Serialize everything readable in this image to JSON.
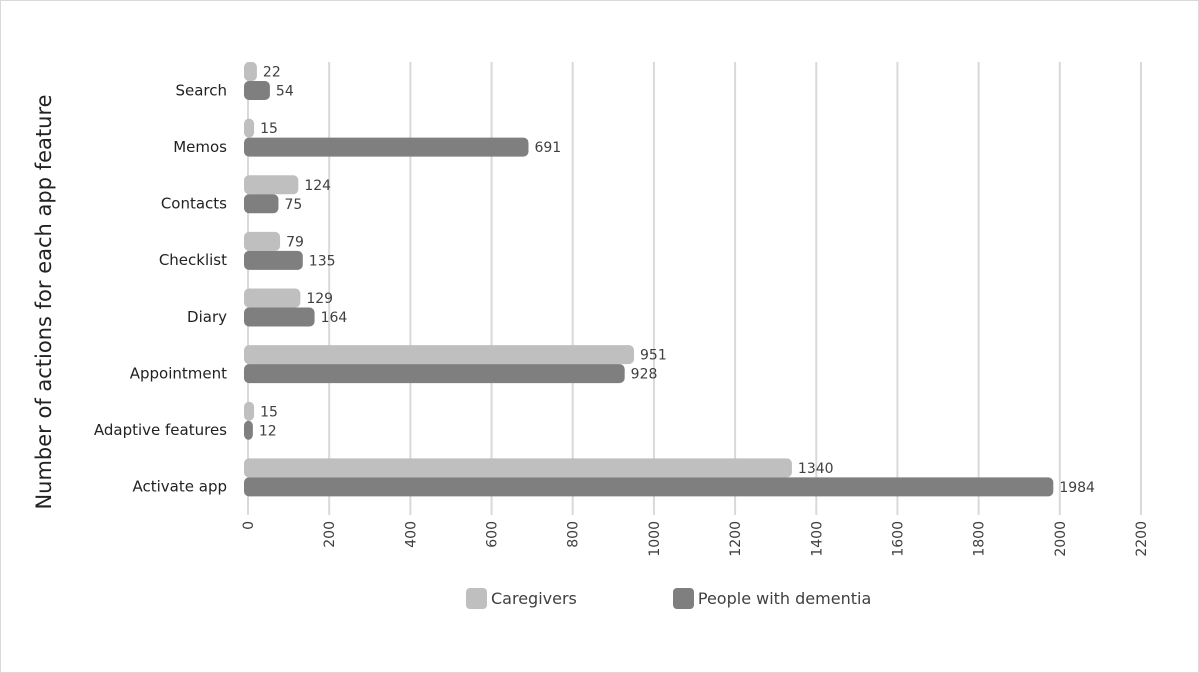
{
  "chart_data": {
    "type": "bar",
    "orientation": "horizontal",
    "ylabel": "Number of actions for each app feature",
    "categories": [
      "Search",
      "Memos",
      "Contacts",
      "Checklist",
      "Diary",
      "Appointment",
      "Adaptive features",
      "Activate app"
    ],
    "series": [
      {
        "name": "Caregivers",
        "color": "#bfbfbf",
        "values": [
          22,
          15,
          124,
          79,
          129,
          951,
          15,
          1340
        ]
      },
      {
        "name": "People with dementia",
        "color": "#7f7f7f",
        "values": [
          54,
          691,
          75,
          135,
          164,
          928,
          12,
          1984
        ]
      }
    ],
    "xlim": [
      0,
      2200
    ],
    "xticks": [
      "0",
      "200",
      "400",
      "600",
      "800",
      "1000",
      "1200",
      "1400",
      "1600",
      "1800",
      "2000",
      "2200"
    ],
    "grid": true,
    "legend_position": "bottom",
    "data_labels": true
  }
}
